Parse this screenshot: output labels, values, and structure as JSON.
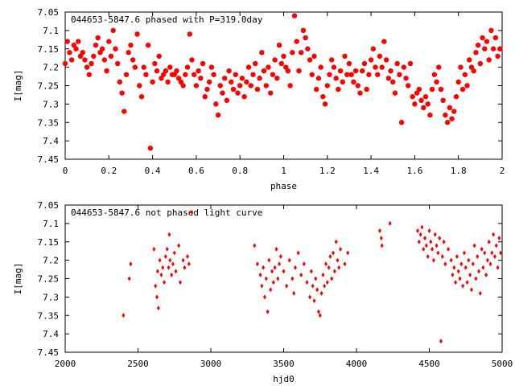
{
  "chart_data": [
    {
      "type": "scatter",
      "title": "044653-5847.6 phased with P=319.0day",
      "xlabel": "phase",
      "ylabel": "I[mag]",
      "xlim": [
        0,
        2
      ],
      "ylim": [
        7.45,
        7.05
      ],
      "y_inverted": true,
      "xticks": [
        "0",
        "0.2",
        "0.4",
        "0.6",
        "0.8",
        "1",
        "1.2",
        "1.4",
        "1.6",
        "1.8",
        "2"
      ],
      "yticks": [
        "7.05",
        "7.1",
        "7.15",
        "7.2",
        "7.25",
        "7.3",
        "7.35",
        "7.4",
        "7.45"
      ],
      "grid": false,
      "legend": "none",
      "marker_color": "#ff0000",
      "marker": "filled-circle",
      "points": [
        [
          0.0,
          7.19
        ],
        [
          0.01,
          7.13
        ],
        [
          0.02,
          7.16
        ],
        [
          0.03,
          7.18
        ],
        [
          0.04,
          7.14
        ],
        [
          0.05,
          7.15
        ],
        [
          0.06,
          7.13
        ],
        [
          0.07,
          7.17
        ],
        [
          0.08,
          7.16
        ],
        [
          0.09,
          7.18
        ],
        [
          0.1,
          7.2
        ],
        [
          0.11,
          7.22
        ],
        [
          0.12,
          7.19
        ],
        [
          0.13,
          7.17
        ],
        [
          0.14,
          7.14
        ],
        [
          0.15,
          7.12
        ],
        [
          0.16,
          7.16
        ],
        [
          0.17,
          7.15
        ],
        [
          0.18,
          7.18
        ],
        [
          0.19,
          7.21
        ],
        [
          0.2,
          7.13
        ],
        [
          0.21,
          7.17
        ],
        [
          0.22,
          7.1
        ],
        [
          0.23,
          7.15
        ],
        [
          0.24,
          7.19
        ],
        [
          0.25,
          7.24
        ],
        [
          0.26,
          7.27
        ],
        [
          0.27,
          7.32
        ],
        [
          0.28,
          7.22
        ],
        [
          0.29,
          7.16
        ],
        [
          0.3,
          7.14
        ],
        [
          0.31,
          7.18
        ],
        [
          0.32,
          7.2
        ],
        [
          0.33,
          7.11
        ],
        [
          0.34,
          7.25
        ],
        [
          0.35,
          7.28
        ],
        [
          0.36,
          7.2
        ],
        [
          0.37,
          7.22
        ],
        [
          0.38,
          7.14
        ],
        [
          0.39,
          7.42
        ],
        [
          0.4,
          7.24
        ],
        [
          0.41,
          7.19
        ],
        [
          0.42,
          7.21
        ],
        [
          0.43,
          7.17
        ],
        [
          0.44,
          7.23
        ],
        [
          0.45,
          7.22
        ],
        [
          0.46,
          7.21
        ],
        [
          0.47,
          7.24
        ],
        [
          0.48,
          7.2
        ],
        [
          0.49,
          7.22
        ],
        [
          0.5,
          7.22
        ],
        [
          0.51,
          7.21
        ],
        [
          0.52,
          7.23
        ],
        [
          0.53,
          7.24
        ],
        [
          0.54,
          7.25
        ],
        [
          0.55,
          7.22
        ],
        [
          0.56,
          7.2
        ],
        [
          0.57,
          7.11
        ],
        [
          0.58,
          7.18
        ],
        [
          0.59,
          7.22
        ],
        [
          0.6,
          7.25
        ],
        [
          0.61,
          7.21
        ],
        [
          0.62,
          7.23
        ],
        [
          0.63,
          7.19
        ],
        [
          0.64,
          7.28
        ],
        [
          0.65,
          7.26
        ],
        [
          0.66,
          7.24
        ],
        [
          0.67,
          7.2
        ],
        [
          0.68,
          7.22
        ],
        [
          0.69,
          7.3
        ],
        [
          0.7,
          7.33
        ],
        [
          0.71,
          7.25
        ],
        [
          0.72,
          7.27
        ],
        [
          0.73,
          7.23
        ],
        [
          0.74,
          7.29
        ],
        [
          0.75,
          7.21
        ],
        [
          0.76,
          7.24
        ],
        [
          0.77,
          7.26
        ],
        [
          0.78,
          7.22
        ],
        [
          0.79,
          7.27
        ],
        [
          0.8,
          7.25
        ],
        [
          0.81,
          7.23
        ],
        [
          0.82,
          7.28
        ],
        [
          0.83,
          7.24
        ],
        [
          0.84,
          7.2
        ],
        [
          0.85,
          7.25
        ],
        [
          0.86,
          7.22
        ],
        [
          0.87,
          7.19
        ],
        [
          0.88,
          7.26
        ],
        [
          0.89,
          7.23
        ],
        [
          0.9,
          7.16
        ],
        [
          0.91,
          7.21
        ],
        [
          0.92,
          7.25
        ],
        [
          0.93,
          7.2
        ],
        [
          0.94,
          7.27
        ],
        [
          0.95,
          7.22
        ],
        [
          0.96,
          7.18
        ],
        [
          0.97,
          7.23
        ],
        [
          0.98,
          7.14
        ],
        [
          0.99,
          7.19
        ],
        [
          1.0,
          7.17
        ],
        [
          1.01,
          7.2
        ],
        [
          1.02,
          7.21
        ],
        [
          1.03,
          7.25
        ],
        [
          1.04,
          7.16
        ],
        [
          1.05,
          7.06
        ],
        [
          1.06,
          7.13
        ],
        [
          1.07,
          7.21
        ],
        [
          1.08,
          7.16
        ],
        [
          1.09,
          7.1
        ],
        [
          1.1,
          7.12
        ],
        [
          1.11,
          7.15
        ],
        [
          1.12,
          7.18
        ],
        [
          1.13,
          7.22
        ],
        [
          1.14,
          7.17
        ],
        [
          1.15,
          7.26
        ],
        [
          1.16,
          7.23
        ],
        [
          1.17,
          7.2
        ],
        [
          1.18,
          7.28
        ],
        [
          1.19,
          7.3
        ],
        [
          1.2,
          7.25
        ],
        [
          1.21,
          7.22
        ],
        [
          1.22,
          7.18
        ],
        [
          1.23,
          7.2
        ],
        [
          1.24,
          7.23
        ],
        [
          1.25,
          7.26
        ],
        [
          1.26,
          7.21
        ],
        [
          1.27,
          7.24
        ],
        [
          1.28,
          7.17
        ],
        [
          1.29,
          7.22
        ],
        [
          1.3,
          7.19
        ],
        [
          1.31,
          7.22
        ],
        [
          1.32,
          7.24
        ],
        [
          1.33,
          7.21
        ],
        [
          1.34,
          7.25
        ],
        [
          1.35,
          7.27
        ],
        [
          1.36,
          7.21
        ],
        [
          1.37,
          7.19
        ],
        [
          1.38,
          7.26
        ],
        [
          1.39,
          7.22
        ],
        [
          1.4,
          7.18
        ],
        [
          1.41,
          7.15
        ],
        [
          1.42,
          7.2
        ],
        [
          1.43,
          7.22
        ],
        [
          1.44,
          7.17
        ],
        [
          1.45,
          7.2
        ],
        [
          1.46,
          7.13
        ],
        [
          1.47,
          7.18
        ],
        [
          1.48,
          7.23
        ],
        [
          1.49,
          7.21
        ],
        [
          1.5,
          7.24
        ],
        [
          1.51,
          7.27
        ],
        [
          1.52,
          7.19
        ],
        [
          1.53,
          7.22
        ],
        [
          1.54,
          7.35
        ],
        [
          1.55,
          7.2
        ],
        [
          1.56,
          7.23
        ],
        [
          1.57,
          7.25
        ],
        [
          1.58,
          7.19
        ],
        [
          1.59,
          7.28
        ],
        [
          1.6,
          7.3
        ],
        [
          1.61,
          7.27
        ],
        [
          1.62,
          7.26
        ],
        [
          1.63,
          7.29
        ],
        [
          1.64,
          7.31
        ],
        [
          1.65,
          7.28
        ],
        [
          1.66,
          7.3
        ],
        [
          1.67,
          7.33
        ],
        [
          1.68,
          7.26
        ],
        [
          1.69,
          7.22
        ],
        [
          1.7,
          7.24
        ],
        [
          1.71,
          7.2
        ],
        [
          1.72,
          7.26
        ],
        [
          1.73,
          7.29
        ],
        [
          1.74,
          7.33
        ],
        [
          1.75,
          7.35
        ],
        [
          1.76,
          7.31
        ],
        [
          1.77,
          7.34
        ],
        [
          1.78,
          7.32
        ],
        [
          1.79,
          7.28
        ],
        [
          1.8,
          7.24
        ],
        [
          1.81,
          7.2
        ],
        [
          1.82,
          7.26
        ],
        [
          1.83,
          7.22
        ],
        [
          1.84,
          7.25
        ],
        [
          1.85,
          7.18
        ],
        [
          1.86,
          7.2
        ],
        [
          1.87,
          7.21
        ],
        [
          1.88,
          7.16
        ],
        [
          1.89,
          7.14
        ],
        [
          1.9,
          7.19
        ],
        [
          1.91,
          7.12
        ],
        [
          1.92,
          7.15
        ],
        [
          1.93,
          7.13
        ],
        [
          1.94,
          7.18
        ],
        [
          1.95,
          7.1
        ],
        [
          1.96,
          7.15
        ],
        [
          1.97,
          7.12
        ],
        [
          1.98,
          7.17
        ],
        [
          1.99,
          7.15
        ]
      ]
    },
    {
      "type": "scatter",
      "title": "044653-5847.6 not phased light curve",
      "xlabel": "hjd0",
      "ylabel": "I[mag]",
      "xlim": [
        2000,
        5000
      ],
      "ylim": [
        7.45,
        7.05
      ],
      "y_inverted": true,
      "xticks": [
        "2000",
        "2500",
        "3000",
        "3500",
        "4000",
        "4500",
        "5000"
      ],
      "yticks": [
        "7.05",
        "7.1",
        "7.15",
        "7.2",
        "7.25",
        "7.3",
        "7.35",
        "7.4",
        "7.45"
      ],
      "grid": false,
      "legend": "none",
      "marker_color": "#ff0000",
      "marker": "diamond",
      "points": [
        [
          2400,
          7.35
        ],
        [
          2440,
          7.25
        ],
        [
          2450,
          7.21
        ],
        [
          2610,
          7.17
        ],
        [
          2620,
          7.27
        ],
        [
          2630,
          7.3
        ],
        [
          2635,
          7.23
        ],
        [
          2640,
          7.33
        ],
        [
          2650,
          7.2
        ],
        [
          2660,
          7.24
        ],
        [
          2670,
          7.22
        ],
        [
          2680,
          7.26
        ],
        [
          2690,
          7.19
        ],
        [
          2700,
          7.17
        ],
        [
          2710,
          7.22
        ],
        [
          2715,
          7.13
        ],
        [
          2720,
          7.2
        ],
        [
          2730,
          7.24
        ],
        [
          2740,
          7.21
        ],
        [
          2750,
          7.18
        ],
        [
          2760,
          7.23
        ],
        [
          2780,
          7.16
        ],
        [
          2790,
          7.26
        ],
        [
          2810,
          7.2
        ],
        [
          2820,
          7.22
        ],
        [
          2840,
          7.19
        ],
        [
          2850,
          7.21
        ],
        [
          2870,
          7.07
        ],
        [
          3300,
          7.16
        ],
        [
          3320,
          7.21
        ],
        [
          3340,
          7.24
        ],
        [
          3350,
          7.27
        ],
        [
          3360,
          7.22
        ],
        [
          3370,
          7.3
        ],
        [
          3380,
          7.25
        ],
        [
          3390,
          7.34
        ],
        [
          3400,
          7.2
        ],
        [
          3410,
          7.28
        ],
        [
          3420,
          7.23
        ],
        [
          3430,
          7.26
        ],
        [
          3440,
          7.22
        ],
        [
          3450,
          7.17
        ],
        [
          3460,
          7.25
        ],
        [
          3470,
          7.21
        ],
        [
          3480,
          7.19
        ],
        [
          3500,
          7.23
        ],
        [
          3520,
          7.27
        ],
        [
          3540,
          7.2
        ],
        [
          3560,
          7.25
        ],
        [
          3570,
          7.29
        ],
        [
          3580,
          7.22
        ],
        [
          3600,
          7.18
        ],
        [
          3620,
          7.24
        ],
        [
          3640,
          7.21
        ],
        [
          3660,
          7.26
        ],
        [
          3680,
          7.3
        ],
        [
          3690,
          7.23
        ],
        [
          3700,
          7.27
        ],
        [
          3710,
          7.31
        ],
        [
          3720,
          7.25
        ],
        [
          3730,
          7.28
        ],
        [
          3740,
          7.34
        ],
        [
          3750,
          7.35
        ],
        [
          3760,
          7.29
        ],
        [
          3770,
          7.24
        ],
        [
          3780,
          7.27
        ],
        [
          3790,
          7.21
        ],
        [
          3800,
          7.26
        ],
        [
          3810,
          7.22
        ],
        [
          3820,
          7.19
        ],
        [
          3830,
          7.25
        ],
        [
          3840,
          7.18
        ],
        [
          3850,
          7.23
        ],
        [
          3860,
          7.15
        ],
        [
          3870,
          7.2
        ],
        [
          3880,
          7.22
        ],
        [
          3890,
          7.17
        ],
        [
          3920,
          7.21
        ],
        [
          3940,
          7.18
        ],
        [
          4160,
          7.12
        ],
        [
          4170,
          7.14
        ],
        [
          4175,
          7.16
        ],
        [
          4230,
          7.1
        ],
        [
          4420,
          7.12
        ],
        [
          4430,
          7.15
        ],
        [
          4440,
          7.13
        ],
        [
          4450,
          7.11
        ],
        [
          4460,
          7.17
        ],
        [
          4470,
          7.14
        ],
        [
          4480,
          7.16
        ],
        [
          4490,
          7.19
        ],
        [
          4500,
          7.12
        ],
        [
          4510,
          7.15
        ],
        [
          4520,
          7.17
        ],
        [
          4530,
          7.2
        ],
        [
          4540,
          7.13
        ],
        [
          4550,
          7.16
        ],
        [
          4560,
          7.18
        ],
        [
          4570,
          7.14
        ],
        [
          4580,
          7.42
        ],
        [
          4590,
          7.19
        ],
        [
          4600,
          7.15
        ],
        [
          4610,
          7.21
        ],
        [
          4630,
          7.17
        ],
        [
          4650,
          7.2
        ],
        [
          4660,
          7.24
        ],
        [
          4670,
          7.22
        ],
        [
          4680,
          7.26
        ],
        [
          4690,
          7.19
        ],
        [
          4700,
          7.23
        ],
        [
          4710,
          7.25
        ],
        [
          4720,
          7.21
        ],
        [
          4730,
          7.27
        ],
        [
          4740,
          7.18
        ],
        [
          4750,
          7.22
        ],
        [
          4760,
          7.26
        ],
        [
          4770,
          7.2
        ],
        [
          4780,
          7.24
        ],
        [
          4790,
          7.28
        ],
        [
          4800,
          7.21
        ],
        [
          4810,
          7.16
        ],
        [
          4820,
          7.25
        ],
        [
          4830,
          7.19
        ],
        [
          4840,
          7.23
        ],
        [
          4850,
          7.29
        ],
        [
          4860,
          7.17
        ],
        [
          4870,
          7.22
        ],
        [
          4880,
          7.18
        ],
        [
          4890,
          7.24
        ],
        [
          4900,
          7.2
        ],
        [
          4910,
          7.15
        ],
        [
          4920,
          7.21
        ],
        [
          4930,
          7.18
        ],
        [
          4940,
          7.13
        ],
        [
          4950,
          7.19
        ],
        [
          4960,
          7.16
        ],
        [
          4970,
          7.22
        ],
        [
          4980,
          7.14
        ],
        [
          4990,
          7.18
        ]
      ]
    }
  ]
}
